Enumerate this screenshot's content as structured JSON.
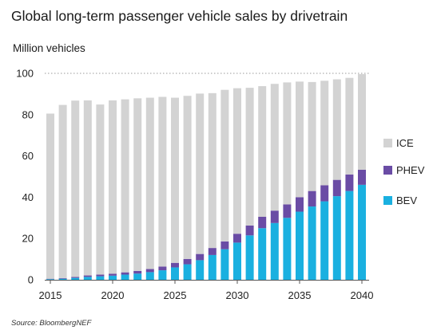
{
  "title": "Global long-term passenger vehicle sales by drivetrain",
  "source": "Source: BloombergNEF",
  "chart_data": {
    "type": "bar",
    "stacked": true,
    "title": "Global long-term passenger vehicle sales by drivetrain",
    "ylabel": "Million vehicles",
    "xlabel": "",
    "ylim": [
      0,
      100
    ],
    "yticks": [
      0,
      20,
      40,
      60,
      80,
      100
    ],
    "xticks": [
      2015,
      2020,
      2025,
      2030,
      2035,
      2040
    ],
    "grid": "dotted line at 100",
    "legend_position": "right",
    "categories": [
      2015,
      2016,
      2017,
      2018,
      2019,
      2020,
      2021,
      2022,
      2023,
      2024,
      2025,
      2026,
      2027,
      2028,
      2029,
      2030,
      2031,
      2032,
      2033,
      2034,
      2035,
      2036,
      2037,
      2038,
      2039,
      2040
    ],
    "series": [
      {
        "name": "BEV",
        "color": "#1ab0e0",
        "values": [
          0.3,
          0.5,
          0.9,
          1.4,
          1.7,
          2.0,
          2.5,
          3.0,
          3.7,
          4.6,
          6.0,
          7.5,
          9.5,
          12.0,
          14.8,
          18.0,
          21.5,
          25.0,
          27.5,
          30.0,
          33.0,
          35.5,
          38.0,
          40.5,
          43.0,
          46.0
        ]
      },
      {
        "name": "PHEV",
        "color": "#6a4ca5",
        "values": [
          0.2,
          0.3,
          0.5,
          0.7,
          0.8,
          0.9,
          1.1,
          1.3,
          1.5,
          1.8,
          2.2,
          2.6,
          3.0,
          3.4,
          3.8,
          4.3,
          4.8,
          5.5,
          6.0,
          6.5,
          7.0,
          7.5,
          7.8,
          7.9,
          8.0,
          7.3
        ]
      },
      {
        "name": "ICE",
        "color": "#d3d3d3",
        "values": [
          80.0,
          83.9,
          85.4,
          84.8,
          82.4,
          84.0,
          83.8,
          83.6,
          83.0,
          82.2,
          80.0,
          79.0,
          77.7,
          75.0,
          73.4,
          70.5,
          66.7,
          63.3,
          61.4,
          59.1,
          56.0,
          52.8,
          50.6,
          48.7,
          46.8,
          46.3
        ]
      }
    ]
  }
}
